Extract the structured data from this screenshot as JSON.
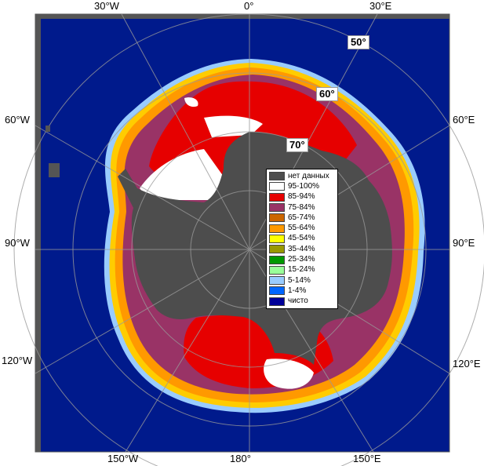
{
  "map": {
    "lon_labels": {
      "top_30w": "30°W",
      "top_0": "0°",
      "top_30e": "30°E",
      "left_60w": "60°W",
      "left_90w": "90°W",
      "left_120w": "120°W",
      "right_60e": "60°E",
      "right_90e": "90°E",
      "right_120e": "120°E",
      "bottom_150w": "150°W",
      "bottom_180": "180°",
      "bottom_150e": "150°E"
    },
    "lat_labels": {
      "lat_50": "50°",
      "lat_60": "60°",
      "lat_70": "70°"
    },
    "colors": {
      "ocean": "#001a8c",
      "land": "#4d4d4d",
      "frame": "#555555",
      "c95_100": "#ffffff",
      "c85_94": "#e60000",
      "c75_84": "#993366",
      "c65_74": "#cc6600",
      "c55_64": "#ff9900",
      "c45_54": "#ffff00",
      "c35_44": "#999900",
      "c25_34": "#009900",
      "c15_24": "#99ff99",
      "c5_14": "#99ccff",
      "c1_4": "#0066ff",
      "clear": "#000099",
      "no_data": "#4d4d4d"
    }
  },
  "legend": {
    "items": [
      {
        "label": "нет данных",
        "color": "#4d4d4d"
      },
      {
        "label": "95-100%",
        "color": "#ffffff"
      },
      {
        "label": "85-94%",
        "color": "#e60000"
      },
      {
        "label": "75-84%",
        "color": "#993366"
      },
      {
        "label": "65-74%",
        "color": "#cc6600"
      },
      {
        "label": "55-64%",
        "color": "#ff9900"
      },
      {
        "label": "45-54%",
        "color": "#ffff00"
      },
      {
        "label": "35-44%",
        "color": "#999900"
      },
      {
        "label": "25-34%",
        "color": "#009900"
      },
      {
        "label": "15-24%",
        "color": "#99ff99"
      },
      {
        "label": "5-14%",
        "color": "#99ccff"
      },
      {
        "label": "1-4%",
        "color": "#0066ff"
      },
      {
        "label": "чисто",
        "color": "#000099"
      }
    ]
  }
}
